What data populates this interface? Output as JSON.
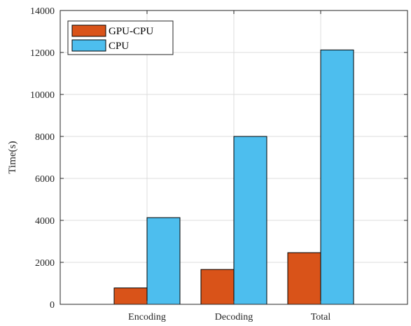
{
  "chart_data": {
    "type": "bar",
    "title": "",
    "xlabel": "",
    "ylabel": "Time(s)",
    "categories": [
      "Encoding",
      "Decoding",
      "Total"
    ],
    "ylim": [
      0,
      14000
    ],
    "yticks": [
      0,
      2000,
      4000,
      6000,
      8000,
      10000,
      12000,
      14000
    ],
    "grid": true,
    "legend_position": "top-left",
    "series": [
      {
        "name": "GPU-CPU",
        "color": "#D95319",
        "values": [
          780,
          1660,
          2460
        ]
      },
      {
        "name": "CPU",
        "color": "#4DBEEE",
        "values": [
          4130,
          8000,
          12120
        ]
      }
    ]
  }
}
